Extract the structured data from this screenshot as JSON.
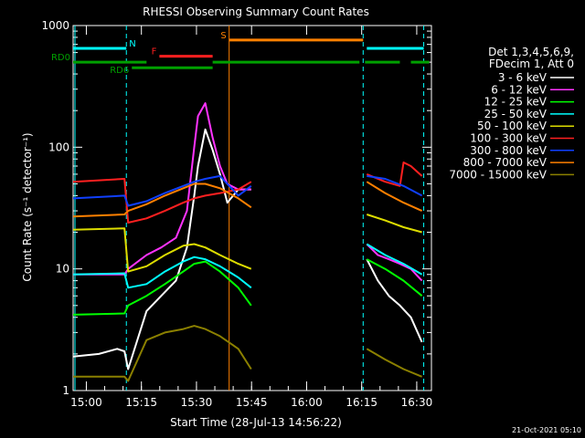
{
  "chart_data": {
    "type": "line",
    "title": "RHESSI Observing Summary Count Rates",
    "xlabel": "Start Time (28-Jul-13 14:56:22)",
    "ylabel": "Count Rate (s⁻¹ detector⁻¹)",
    "x_unit": "minutes after 14:56:22",
    "xlim": [
      0,
      97.6
    ],
    "ylim": [
      1,
      1000
    ],
    "yscale": "log",
    "x_ticks": [
      {
        "label": "15:00",
        "x": 3.6
      },
      {
        "label": "15:15",
        "x": 18.6
      },
      {
        "label": "15:30",
        "x": 33.6
      },
      {
        "label": "15:45",
        "x": 48.6
      },
      {
        "label": "16:00",
        "x": 63.6
      },
      {
        "label": "16:15",
        "x": 78.6
      },
      {
        "label": "16:30",
        "x": 93.6
      }
    ],
    "y_ticks": [
      {
        "label": "1",
        "y": 1
      },
      {
        "label": "10",
        "y": 10
      },
      {
        "label": "100",
        "y": 100
      },
      {
        "label": "1000",
        "y": 1000
      }
    ],
    "legend": {
      "placement": "right",
      "header": [
        "Det 1,3,4,5,6,9,",
        "FDecim 1, Att 0"
      ]
    },
    "series": [
      {
        "name": "3 - 6 keV",
        "color": "#ffffff",
        "x": [
          0,
          7,
          12,
          14,
          15,
          20,
          24,
          28,
          31,
          33,
          34,
          36,
          38,
          40,
          42,
          45,
          48.5,
          77.5,
          80,
          83,
          86,
          89,
          92,
          95
        ],
        "y": [
          1.9,
          2.0,
          2.2,
          2.1,
          1.5,
          4.5,
          6.0,
          8.0,
          15,
          40,
          70,
          140,
          95,
          60,
          35,
          45,
          45,
          null,
          12,
          8,
          6,
          5,
          4,
          2.5
        ]
      },
      {
        "name": "6 - 12 keV",
        "color": "#ff33ff",
        "x": [
          0,
          14,
          15,
          20,
          24,
          28,
          31,
          33,
          34,
          36,
          38,
          40,
          42,
          45,
          48.5,
          77.5,
          80,
          83,
          86,
          89,
          92,
          95
        ],
        "y": [
          9,
          9,
          10,
          13,
          15,
          18,
          30,
          100,
          180,
          230,
          120,
          70,
          50,
          45,
          45,
          null,
          16,
          13,
          12,
          11,
          10,
          8
        ]
      },
      {
        "name": "12 - 25 keV",
        "color": "#00ff00",
        "x": [
          0,
          14,
          15,
          20,
          25,
          30,
          33,
          36,
          40,
          45,
          48.5,
          77.5,
          80,
          85,
          90,
          95
        ],
        "y": [
          4.2,
          4.3,
          5.0,
          6.0,
          7.5,
          9.5,
          11,
          11.5,
          9.5,
          7.0,
          5.0,
          null,
          12,
          10,
          8,
          6
        ]
      },
      {
        "name": "25 - 50 keV",
        "color": "#00ffff",
        "x": [
          0,
          14,
          15,
          20,
          25,
          30,
          33,
          36,
          40,
          45,
          48.5,
          77.5,
          80,
          85,
          90,
          95
        ],
        "y": [
          9,
          9.2,
          7.0,
          7.5,
          9.5,
          11.5,
          12.5,
          12.0,
          10.5,
          8.5,
          7.0,
          null,
          16,
          13,
          11,
          9
        ]
      },
      {
        "name": "50 - 100 keV",
        "color": "#dddd00",
        "x": [
          0,
          14,
          15,
          20,
          25,
          30,
          33,
          36,
          40,
          45,
          48.5,
          77.5,
          80,
          85,
          90,
          95
        ],
        "y": [
          21,
          21.5,
          9.5,
          10.5,
          13,
          15.5,
          16,
          15,
          13,
          11,
          10,
          null,
          28,
          25,
          22,
          20
        ]
      },
      {
        "name": "100 - 300 keV",
        "color": "#ff2020",
        "x": [
          0,
          14,
          15,
          20,
          25,
          30,
          33,
          36,
          40,
          45,
          48.5,
          77.5,
          80,
          85,
          89,
          90,
          92,
          95
        ],
        "y": [
          52,
          55,
          24,
          26,
          30,
          35,
          38,
          40,
          42,
          45,
          52,
          null,
          60,
          52,
          48,
          75,
          70,
          58
        ]
      },
      {
        "name": "300 - 800 keV",
        "color": "#1040ff",
        "x": [
          0,
          14,
          15,
          20,
          25,
          30,
          33,
          36,
          40,
          45,
          48.5,
          77.5,
          80,
          85,
          90,
          95
        ],
        "y": [
          38,
          40,
          33,
          36,
          42,
          48,
          52,
          55,
          58,
          40,
          48,
          null,
          58,
          55,
          48,
          40
        ]
      },
      {
        "name": "800 - 7000 keV",
        "color": "#ff8000",
        "x": [
          0,
          14,
          15,
          20,
          25,
          30,
          33,
          36,
          40,
          45,
          48.5,
          77.5,
          80,
          85,
          90,
          95
        ],
        "y": [
          27,
          28,
          30,
          34,
          40,
          46,
          50,
          50,
          46,
          38,
          32,
          null,
          52,
          42,
          35,
          30
        ]
      },
      {
        "name": "7000 - 15000 keV",
        "color": "#8b8000",
        "x": [
          0,
          14,
          15,
          20,
          25,
          30,
          33,
          36,
          40,
          45,
          48.5,
          77.5,
          80,
          85,
          90,
          95
        ],
        "y": [
          1.3,
          1.3,
          1.2,
          2.6,
          3.0,
          3.2,
          3.4,
          3.2,
          2.8,
          2.2,
          1.5,
          null,
          2.2,
          1.8,
          1.5,
          1.3
        ]
      }
    ],
    "annotations": [
      {
        "label": "N",
        "color": "#00ffff",
        "y": 650,
        "segments": [
          [
            0,
            14.5
          ],
          [
            80,
            95.5
          ]
        ]
      },
      {
        "label": "F",
        "color": "#ff2020",
        "y": 560,
        "segments": [
          [
            23.5,
            38
          ]
        ]
      },
      {
        "label": "S",
        "color": "#ff8000",
        "y": 760,
        "segments": [
          [
            42.5,
            79
          ]
        ]
      },
      {
        "label": "RD0",
        "color": "#00a000",
        "y": 500,
        "segments": [
          [
            0,
            20
          ],
          [
            38,
            78
          ],
          [
            79.5,
            89
          ],
          [
            92,
            97
          ]
        ]
      },
      {
        "label": "RD6",
        "color": "#00a000",
        "y": 450,
        "segments": [
          [
            16,
            38
          ]
        ]
      }
    ],
    "vertical_markers": [
      {
        "x": 0.5,
        "color": "#00ffff",
        "style": "solid"
      },
      {
        "x": 14.5,
        "color": "#00ffff",
        "style": "dashed"
      },
      {
        "x": 42.5,
        "color": "#ff8000",
        "style": "solid"
      },
      {
        "x": 79,
        "color": "#00ffff",
        "style": "dashed"
      },
      {
        "x": 95.5,
        "color": "#00ffff",
        "style": "dashed"
      }
    ],
    "footer": "21-Oct-2021 05:10"
  }
}
